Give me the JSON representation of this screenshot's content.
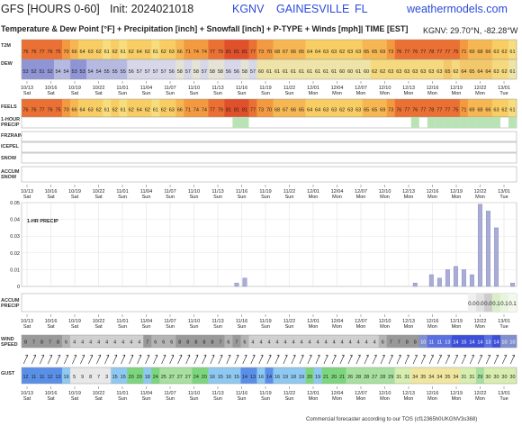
{
  "header": {
    "model": "GFS [HOURS 0-60]",
    "init": "Init: 2024021018",
    "station": "KGNV",
    "city": "GAINESVILLE",
    "state": "FL",
    "site": "weathermodels.com",
    "subtitle": "Temperature & Dew Point [°F] + Precipitation [inch] + Snowfall [inch] + P-TYPE + Winds [mph]| TIME [EST]",
    "coords": "KGNV: 29.70°N, -82.28°W"
  },
  "footer": "Commercial forecaster according to our TOS (cf12365h0UKGNV3s368)",
  "row_labels": {
    "t2m": "T2M",
    "dew": "DEW",
    "feels": "FEELS",
    "precip1h": "1-HOUR PRECIP",
    "frzrain": "FRZRAIN",
    "icepel": "ICEPEL",
    "snow": "SNOW",
    "accum_snow": "ACCUM SNOW",
    "accum_precip": "ACCUM PRECIP",
    "wind_speed": "WIND SPEED",
    "gust": "GUST"
  },
  "time_axis": {
    "dates": [
      "10/13",
      "10/16",
      "10/19",
      "10/22",
      "11/01",
      "11/04",
      "11/07",
      "11/10",
      "11/13",
      "11/16",
      "11/19",
      "11/22",
      "12/01",
      "12/04",
      "12/07",
      "12/10",
      "12/13",
      "12/16",
      "12/19",
      "12/22",
      "13/01"
    ],
    "days": [
      "Sat",
      "Sat",
      "Sat",
      "Sat",
      "Sun",
      "Sun",
      "Sun",
      "Sun",
      "Sun",
      "Sun",
      "Sun",
      "Sun",
      "Mon",
      "Mon",
      "Mon",
      "Mon",
      "Mon",
      "Mon",
      "Mon",
      "Mon",
      "Tue"
    ]
  },
  "chart_data": {
    "type": "table",
    "t2m": [
      76,
      76,
      77,
      76,
      75,
      70,
      66,
      64,
      63,
      62,
      61,
      62,
      61,
      62,
      64,
      62,
      61,
      62,
      63,
      66,
      71,
      74,
      74,
      77,
      79,
      81,
      81,
      81,
      77,
      73,
      70,
      68,
      67,
      66,
      65,
      64,
      64,
      63,
      63,
      62,
      63,
      63,
      65,
      65,
      69,
      73,
      76,
      77,
      76,
      77,
      78,
      77,
      77,
      75,
      71,
      69,
      68,
      66,
      63,
      62,
      61
    ],
    "dew": [
      53,
      52,
      51,
      52,
      54,
      54,
      53,
      53,
      54,
      54,
      55,
      55,
      55,
      56,
      57,
      57,
      57,
      57,
      56,
      58,
      57,
      58,
      57,
      58,
      58,
      56,
      56,
      58,
      57,
      60,
      61,
      61,
      61,
      61,
      61,
      61,
      61,
      61,
      61,
      60,
      60,
      61,
      60,
      62,
      62,
      63,
      63,
      63,
      63,
      63,
      63,
      63,
      65,
      62,
      64,
      65,
      64,
      64,
      63,
      62,
      61
    ],
    "feels": [
      76,
      76,
      77,
      76,
      75,
      70,
      66,
      64,
      63,
      62,
      61,
      62,
      61,
      62,
      64,
      62,
      61,
      62,
      63,
      66,
      71,
      74,
      74,
      77,
      79,
      81,
      81,
      81,
      77,
      73,
      70,
      68,
      67,
      66,
      65,
      64,
      64,
      63,
      63,
      62,
      63,
      63,
      65,
      65,
      69,
      73,
      76,
      77,
      76,
      77,
      78,
      77,
      77,
      75,
      71,
      69,
      68,
      66,
      63,
      62,
      61
    ],
    "precip_1h": {
      "ylim": [
        0,
        0.05
      ],
      "ticks": [
        0.01,
        0.02,
        0.03,
        0.04,
        0.05
      ],
      "title": "1-HR PRECIP",
      "values": [
        0,
        0,
        0,
        0,
        0,
        0,
        0,
        0,
        0,
        0,
        0,
        0,
        0,
        0,
        0,
        0,
        0,
        0,
        0,
        0,
        0,
        0,
        0,
        0,
        0,
        0,
        0.002,
        0.005,
        0,
        0,
        0,
        0,
        0,
        0,
        0,
        0,
        0,
        0,
        0,
        0,
        0,
        0,
        0,
        0,
        0,
        0,
        0,
        0,
        0.002,
        0,
        0.007,
        0.005,
        0.01,
        0.012,
        0.01,
        0.007,
        0.049,
        0.045,
        0.035,
        0,
        0.002
      ]
    },
    "accum_precip": [
      "0.0",
      "0.0",
      "0.0",
      "0.1",
      "0.1",
      "0.1"
    ],
    "wind_speed": [
      8,
      7,
      8,
      7,
      8,
      6,
      4,
      4,
      4,
      4,
      4,
      4,
      4,
      4,
      4,
      7,
      6,
      6,
      6,
      8,
      8,
      8,
      8,
      8,
      7,
      6,
      7,
      6,
      4,
      4,
      4,
      4,
      4,
      4,
      4,
      4,
      4,
      4,
      4,
      4,
      4,
      4,
      4,
      4,
      6,
      7,
      7,
      8,
      8,
      10,
      11,
      11,
      13,
      14,
      15,
      14,
      14,
      13,
      14,
      10,
      10
    ],
    "gust": [
      12,
      11,
      11,
      12,
      13,
      16,
      5,
      9,
      8,
      7,
      3,
      15,
      15,
      20,
      20,
      18,
      24,
      25,
      27,
      27,
      27,
      24,
      20,
      16,
      15,
      16,
      15,
      14,
      13,
      16,
      14,
      16,
      19,
      18,
      19,
      20,
      19,
      21,
      20,
      21,
      26,
      28,
      28,
      27,
      28,
      29,
      31,
      31,
      34,
      35,
      34,
      34,
      35,
      34,
      31,
      31,
      29,
      30,
      30,
      30,
      30
    ]
  },
  "colors": {
    "hot": "#e0502a",
    "warm": "#f5a640",
    "mild": "#f8d46a",
    "cool_dew": "#9b9fd8",
    "precip_bar": "#a9add6",
    "precip_row": "#b9e2b5",
    "wind_low": "#8c8c8c",
    "wind_high": "#3d4fd8"
  }
}
